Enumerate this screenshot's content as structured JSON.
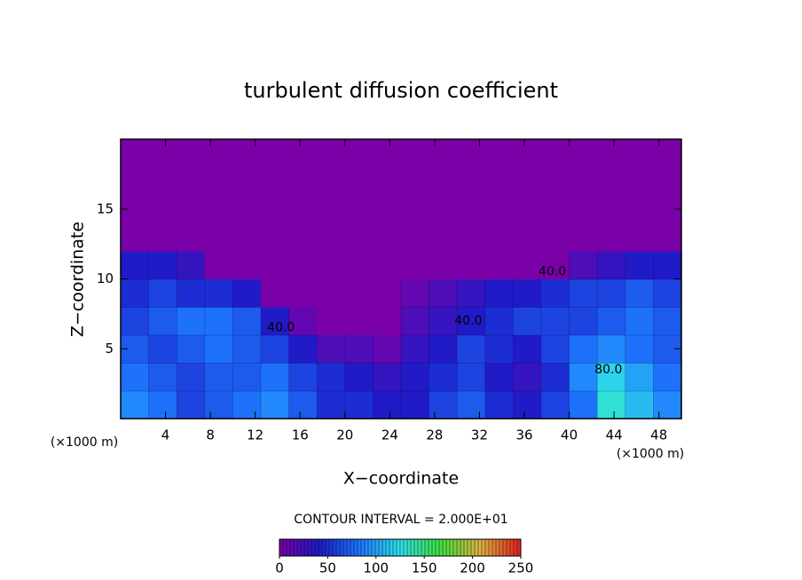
{
  "chart_data": {
    "type": "heatmap",
    "title": "turbulent diffusion coefficient",
    "x_label": "X−coordinate",
    "y_label": "Z−coordinate",
    "x_unit": "(×1000 m)",
    "y_unit": "(×1000 m)",
    "contour_note": "CONTOUR INTERVAL = 2.000E+01",
    "xlim": [
      0,
      50
    ],
    "ylim": [
      0,
      20
    ],
    "xticks": [
      4,
      8,
      12,
      16,
      20,
      24,
      28,
      32,
      36,
      40,
      44,
      48
    ],
    "yticks": [
      5,
      10,
      15
    ],
    "x": [
      1.25,
      3.75,
      6.25,
      8.75,
      11.25,
      13.75,
      16.25,
      18.75,
      21.25,
      23.75,
      26.25,
      28.75,
      31.25,
      33.75,
      36.25,
      38.75,
      41.25,
      43.75,
      46.25,
      48.75
    ],
    "y": [
      1,
      3,
      5,
      7,
      9,
      11,
      13,
      15,
      17,
      19
    ],
    "values": [
      [
        90,
        80,
        60,
        70,
        80,
        90,
        70,
        50,
        50,
        40,
        40,
        60,
        70,
        50,
        40,
        60,
        80,
        130,
        110,
        90
      ],
      [
        80,
        70,
        60,
        70,
        70,
        80,
        60,
        50,
        40,
        30,
        40,
        50,
        60,
        40,
        30,
        50,
        90,
        120,
        100,
        80
      ],
      [
        70,
        60,
        70,
        80,
        70,
        60,
        40,
        20,
        20,
        10,
        30,
        40,
        60,
        50,
        40,
        60,
        80,
        90,
        80,
        70
      ],
      [
        60,
        70,
        80,
        80,
        70,
        40,
        10,
        0,
        0,
        0,
        20,
        30,
        40,
        50,
        60,
        60,
        60,
        70,
        80,
        70
      ],
      [
        50,
        60,
        50,
        50,
        40,
        0,
        0,
        0,
        0,
        0,
        10,
        20,
        30,
        40,
        40,
        50,
        60,
        60,
        70,
        60
      ],
      [
        40,
        40,
        30,
        0,
        0,
        0,
        0,
        0,
        0,
        0,
        0,
        0,
        0,
        0,
        0,
        0,
        20,
        30,
        40,
        40
      ],
      [
        0,
        0,
        0,
        0,
        0,
        0,
        0,
        0,
        0,
        0,
        0,
        0,
        0,
        0,
        0,
        0,
        0,
        0,
        0,
        0
      ],
      [
        0,
        0,
        0,
        0,
        0,
        0,
        0,
        0,
        0,
        0,
        0,
        0,
        0,
        0,
        0,
        0,
        0,
        0,
        0,
        0
      ],
      [
        0,
        0,
        0,
        0,
        0,
        0,
        0,
        0,
        0,
        0,
        0,
        0,
        0,
        0,
        0,
        0,
        0,
        0,
        0,
        0
      ],
      [
        0,
        0,
        0,
        0,
        0,
        0,
        0,
        0,
        0,
        0,
        0,
        0,
        0,
        0,
        0,
        0,
        0,
        0,
        0,
        0
      ]
    ],
    "annotations": [
      {
        "text": "40.0",
        "x": 38.5,
        "y": 10.5
      },
      {
        "text": "40.0",
        "x": 31,
        "y": 7
      },
      {
        "text": "40.0",
        "x": 14.3,
        "y": 6.5
      },
      {
        "text": "80.0",
        "x": 43.5,
        "y": 3.5
      }
    ],
    "clim": [
      0,
      250
    ],
    "cbticks": [
      0,
      50,
      100,
      150,
      200,
      250
    ],
    "colormap": [
      "#7a00a8",
      "#1c1cc8",
      "#1e78ff",
      "#2ee0e8",
      "#40e040",
      "#e0b040",
      "#e02020"
    ]
  }
}
